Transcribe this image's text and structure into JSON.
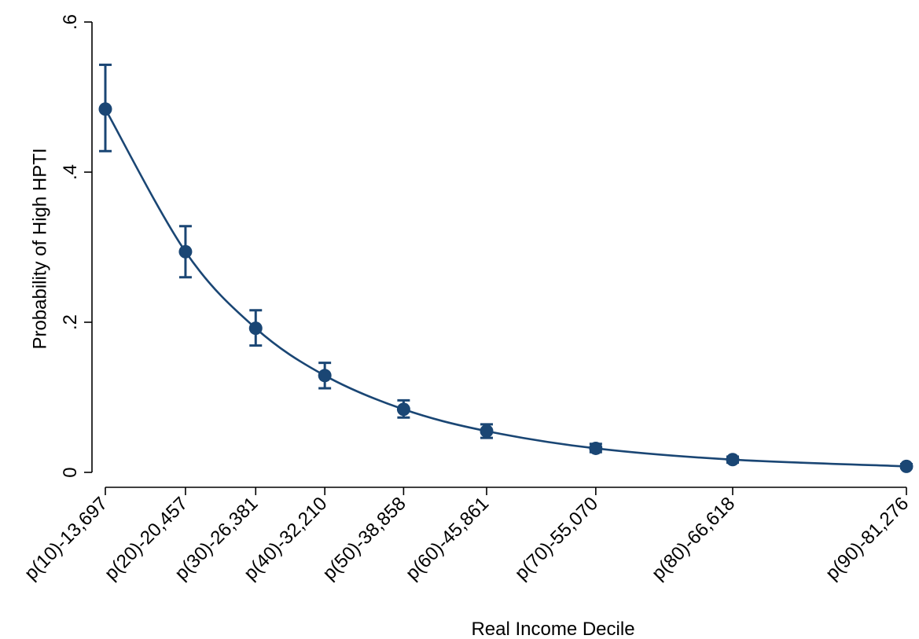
{
  "chart_data": {
    "type": "line",
    "xlabel": "Real Income Decile",
    "ylabel": "Probability of High HPTI",
    "categories": [
      "p(10)-13,697",
      "p(20)-20,457",
      "p(30)-26,381",
      "p(40)-32,210",
      "p(50)-38,858",
      "p(60)-45,861",
      "p(70)-55,070",
      "p(80)-66,618",
      "p(90)-81,276"
    ],
    "x": [
      13697,
      20457,
      26381,
      32210,
      38858,
      45861,
      55070,
      66618,
      81276
    ],
    "series": [
      {
        "values": [
          0.484,
          0.294,
          0.192,
          0.129,
          0.084,
          0.055,
          0.032,
          0.017,
          0.008
        ],
        "ci_low": [
          0.428,
          0.26,
          0.169,
          0.112,
          0.073,
          0.046,
          0.027,
          0.013,
          0.006
        ],
        "ci_high": [
          0.543,
          0.328,
          0.216,
          0.146,
          0.096,
          0.064,
          0.038,
          0.021,
          0.011
        ],
        "color": "#1a4674"
      }
    ],
    "yticks": [
      0,
      0.2,
      0.4,
      0.6
    ],
    "ytick_labels": [
      "0",
      ".2",
      ".4",
      ".6"
    ],
    "ylim": [
      0,
      0.6
    ],
    "xlim": [
      13697,
      81276
    ],
    "grid": false,
    "legend": "none"
  }
}
